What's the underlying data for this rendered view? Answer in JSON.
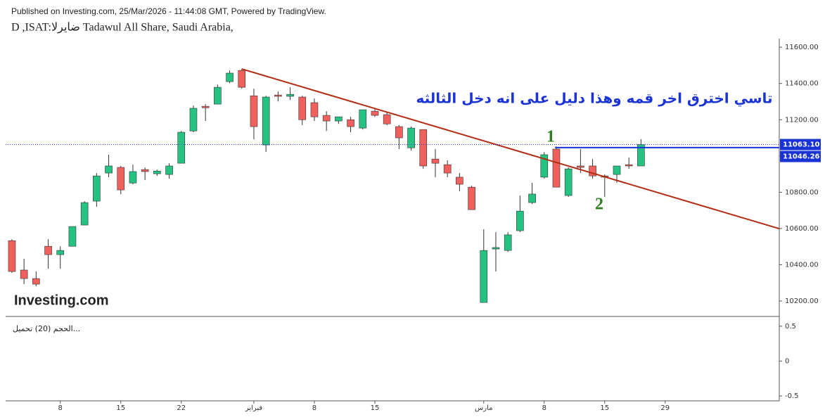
{
  "chart_data": [
    {
      "type": "candlestick",
      "source": "Published on Investing.com, 25/Mar/2026 - 11:44:08 GMT, Powered by TradingView.",
      "title": "D ,ISAT:ضايرلا Tadawul All Share, Saudi Arabia,",
      "logo": "Investing.com",
      "x": [
        0,
        1,
        2,
        3,
        4,
        5,
        6,
        7,
        8,
        9,
        10,
        11,
        12,
        13,
        14,
        15,
        16,
        17,
        18,
        19,
        20,
        21,
        22,
        23,
        24,
        25,
        26,
        27,
        28,
        29,
        30,
        31,
        32,
        33,
        34,
        35,
        36,
        37,
        38,
        39,
        40,
        41,
        42,
        43,
        44,
        45,
        46,
        47,
        48,
        49,
        50,
        51,
        52
      ],
      "xlim": [
        -0.52,
        63.43
      ],
      "xticks": [
        {
          "value": 4,
          "label": "8"
        },
        {
          "value": 9,
          "label": "15"
        },
        {
          "value": 14,
          "label": "22"
        },
        {
          "value": 20,
          "label": "فبراير"
        },
        {
          "value": 25,
          "label": "8"
        },
        {
          "value": 30,
          "label": "15"
        },
        {
          "value": 39,
          "label": "مارس"
        },
        {
          "value": 44,
          "label": "8"
        },
        {
          "value": 49,
          "label": "15"
        },
        {
          "value": 54,
          "label": "29"
        }
      ],
      "ylim": [
        10115,
        11647
      ],
      "yticks": [
        {
          "value": 10200,
          "label": "10200.00"
        },
        {
          "value": 10400,
          "label": "10400.00"
        },
        {
          "value": 10600,
          "label": "10600.00"
        },
        {
          "value": 10800,
          "label": "10800.00"
        },
        {
          "value": 11000,
          "label": "11000.00"
        },
        {
          "value": 11200,
          "label": "11200.00"
        },
        {
          "value": 11400,
          "label": "11400.00"
        },
        {
          "value": 11600,
          "label": "11600.00"
        }
      ],
      "up_color": "#26c281",
      "down_color": "#f0605d",
      "open": [
        10533,
        10371,
        10324,
        10502,
        10456,
        10502,
        10619,
        10751,
        10906,
        10937,
        10851,
        10925,
        10902,
        10898,
        10960,
        11138,
        11274,
        11286,
        11410,
        11472,
        11332,
        11061,
        11336,
        11329,
        11325,
        11294,
        11224,
        11193,
        11200,
        11154,
        11247,
        11228,
        11162,
        11045,
        11146,
        10983,
        10952,
        10883,
        10828,
        10192,
        10487,
        10479,
        10588,
        10743,
        10883,
        11038,
        10782,
        10945,
        10945,
        10890,
        10898,
        10952,
        10945
      ],
      "high": [
        10541,
        10433,
        10363,
        10541,
        10502,
        10611,
        10751,
        10906,
        11007,
        10945,
        10952,
        10937,
        10925,
        10960,
        11138,
        11278,
        11286,
        11394,
        11472,
        11480,
        11371,
        11332,
        11356,
        11379,
        11332,
        11317,
        11247,
        11216,
        11216,
        11255,
        11263,
        11239,
        11170,
        11162,
        11146,
        11038,
        10976,
        10906,
        10836,
        10596,
        10580,
        10580,
        10782,
        10852,
        11022,
        11053,
        10937,
        11038,
        10983,
        10898,
        10945,
        10991,
        11092
      ],
      "low": [
        10355,
        10293,
        10281,
        10378,
        10378,
        10502,
        10619,
        10720,
        10883,
        10789,
        10844,
        10867,
        10890,
        10875,
        10960,
        11131,
        11193,
        11286,
        11402,
        11371,
        11092,
        11022,
        11301,
        11309,
        11170,
        11193,
        11138,
        11177,
        11131,
        11146,
        11216,
        11170,
        11038,
        11030,
        10929,
        10883,
        10883,
        10805,
        10704,
        10192,
        10363,
        10471,
        10580,
        10735,
        10875,
        10828,
        10774,
        10906,
        10875,
        10774,
        10852,
        10929,
        10945
      ],
      "close": [
        10363,
        10324,
        10293,
        10456,
        10479,
        10611,
        10743,
        10890,
        10945,
        10813,
        10914,
        10914,
        10917,
        10945,
        11131,
        11263,
        11266,
        11379,
        11457,
        11379,
        11162,
        11325,
        11329,
        11340,
        11200,
        11216,
        11193,
        11216,
        11162,
        11255,
        11224,
        11177,
        11100,
        11154,
        10945,
        10960,
        10906,
        10844,
        10704,
        10479,
        10495,
        10565,
        10696,
        10790,
        11007,
        10828,
        10929,
        10937,
        10890,
        10883,
        10945,
        10945,
        11063
      ],
      "trendline": {
        "x": [
          19,
          63.43
        ],
        "y": [
          11480,
          10599
        ],
        "color": "#b22a10"
      },
      "hline": {
        "x": [
          44.9,
          63.43
        ],
        "value": {
          "value": 11046.26,
          "label": "11046.26"
        },
        "color": "#1a33d4"
      },
      "last_price": {
        "value": 11063.1,
        "label": "11063.10",
        "color": "#1a33d4"
      },
      "annotation": "تاسي اخترق اخر قمه وهذا دليل على انه دخل الثالثه",
      "marks": [
        "1",
        "2"
      ]
    },
    {
      "type": "volume",
      "title": "الحجم (20) تحميل...",
      "ylim": [
        -0.57,
        0.64
      ],
      "yticks": [
        0.5,
        0,
        -0.5
      ]
    }
  ]
}
